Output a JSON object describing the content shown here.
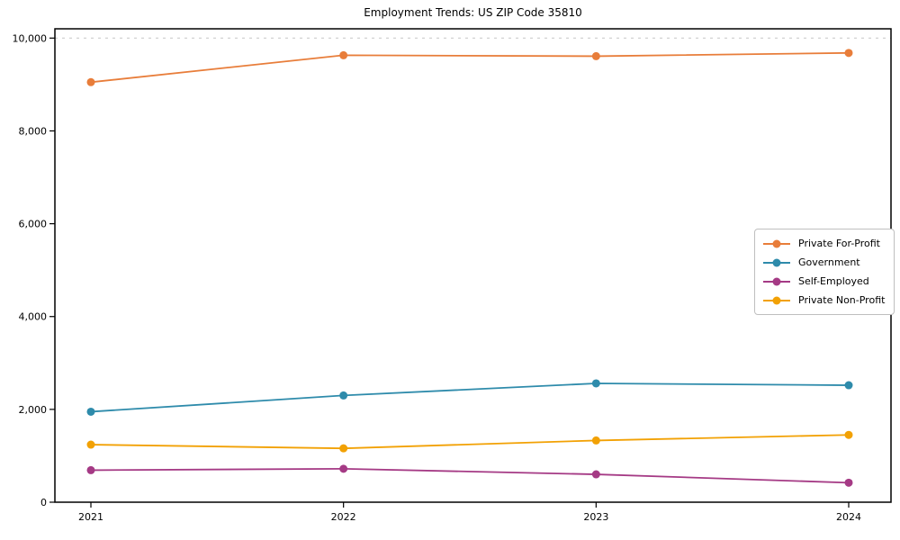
{
  "chart_data": {
    "type": "line",
    "title": "Employment Trends: US ZIP Code 35810",
    "x_categories": [
      "2021",
      "2022",
      "2023",
      "2024"
    ],
    "series": [
      {
        "name": "Private For-Profit",
        "color": "#e87d3a",
        "values": [
          9050,
          9630,
          9610,
          9680
        ]
      },
      {
        "name": "Government",
        "color": "#2e8bab",
        "values": [
          1950,
          2300,
          2560,
          2520
        ]
      },
      {
        "name": "Self-Employed",
        "color": "#a53a85",
        "values": [
          690,
          720,
          600,
          420
        ]
      },
      {
        "name": "Private Non-Profit",
        "color": "#f2a104",
        "values": [
          1240,
          1160,
          1330,
          1450
        ]
      }
    ],
    "xlabel": "",
    "ylabel": "",
    "ylim": [
      0,
      10200
    ],
    "yticks": [
      0,
      2000,
      4000,
      6000,
      8000,
      10000
    ],
    "grid": false,
    "top_gridline": {
      "y": 10000,
      "style": "dashed",
      "color": "#cccccc"
    },
    "marker": "circle",
    "axis_color": "#000000",
    "legend_position": "center-right"
  }
}
